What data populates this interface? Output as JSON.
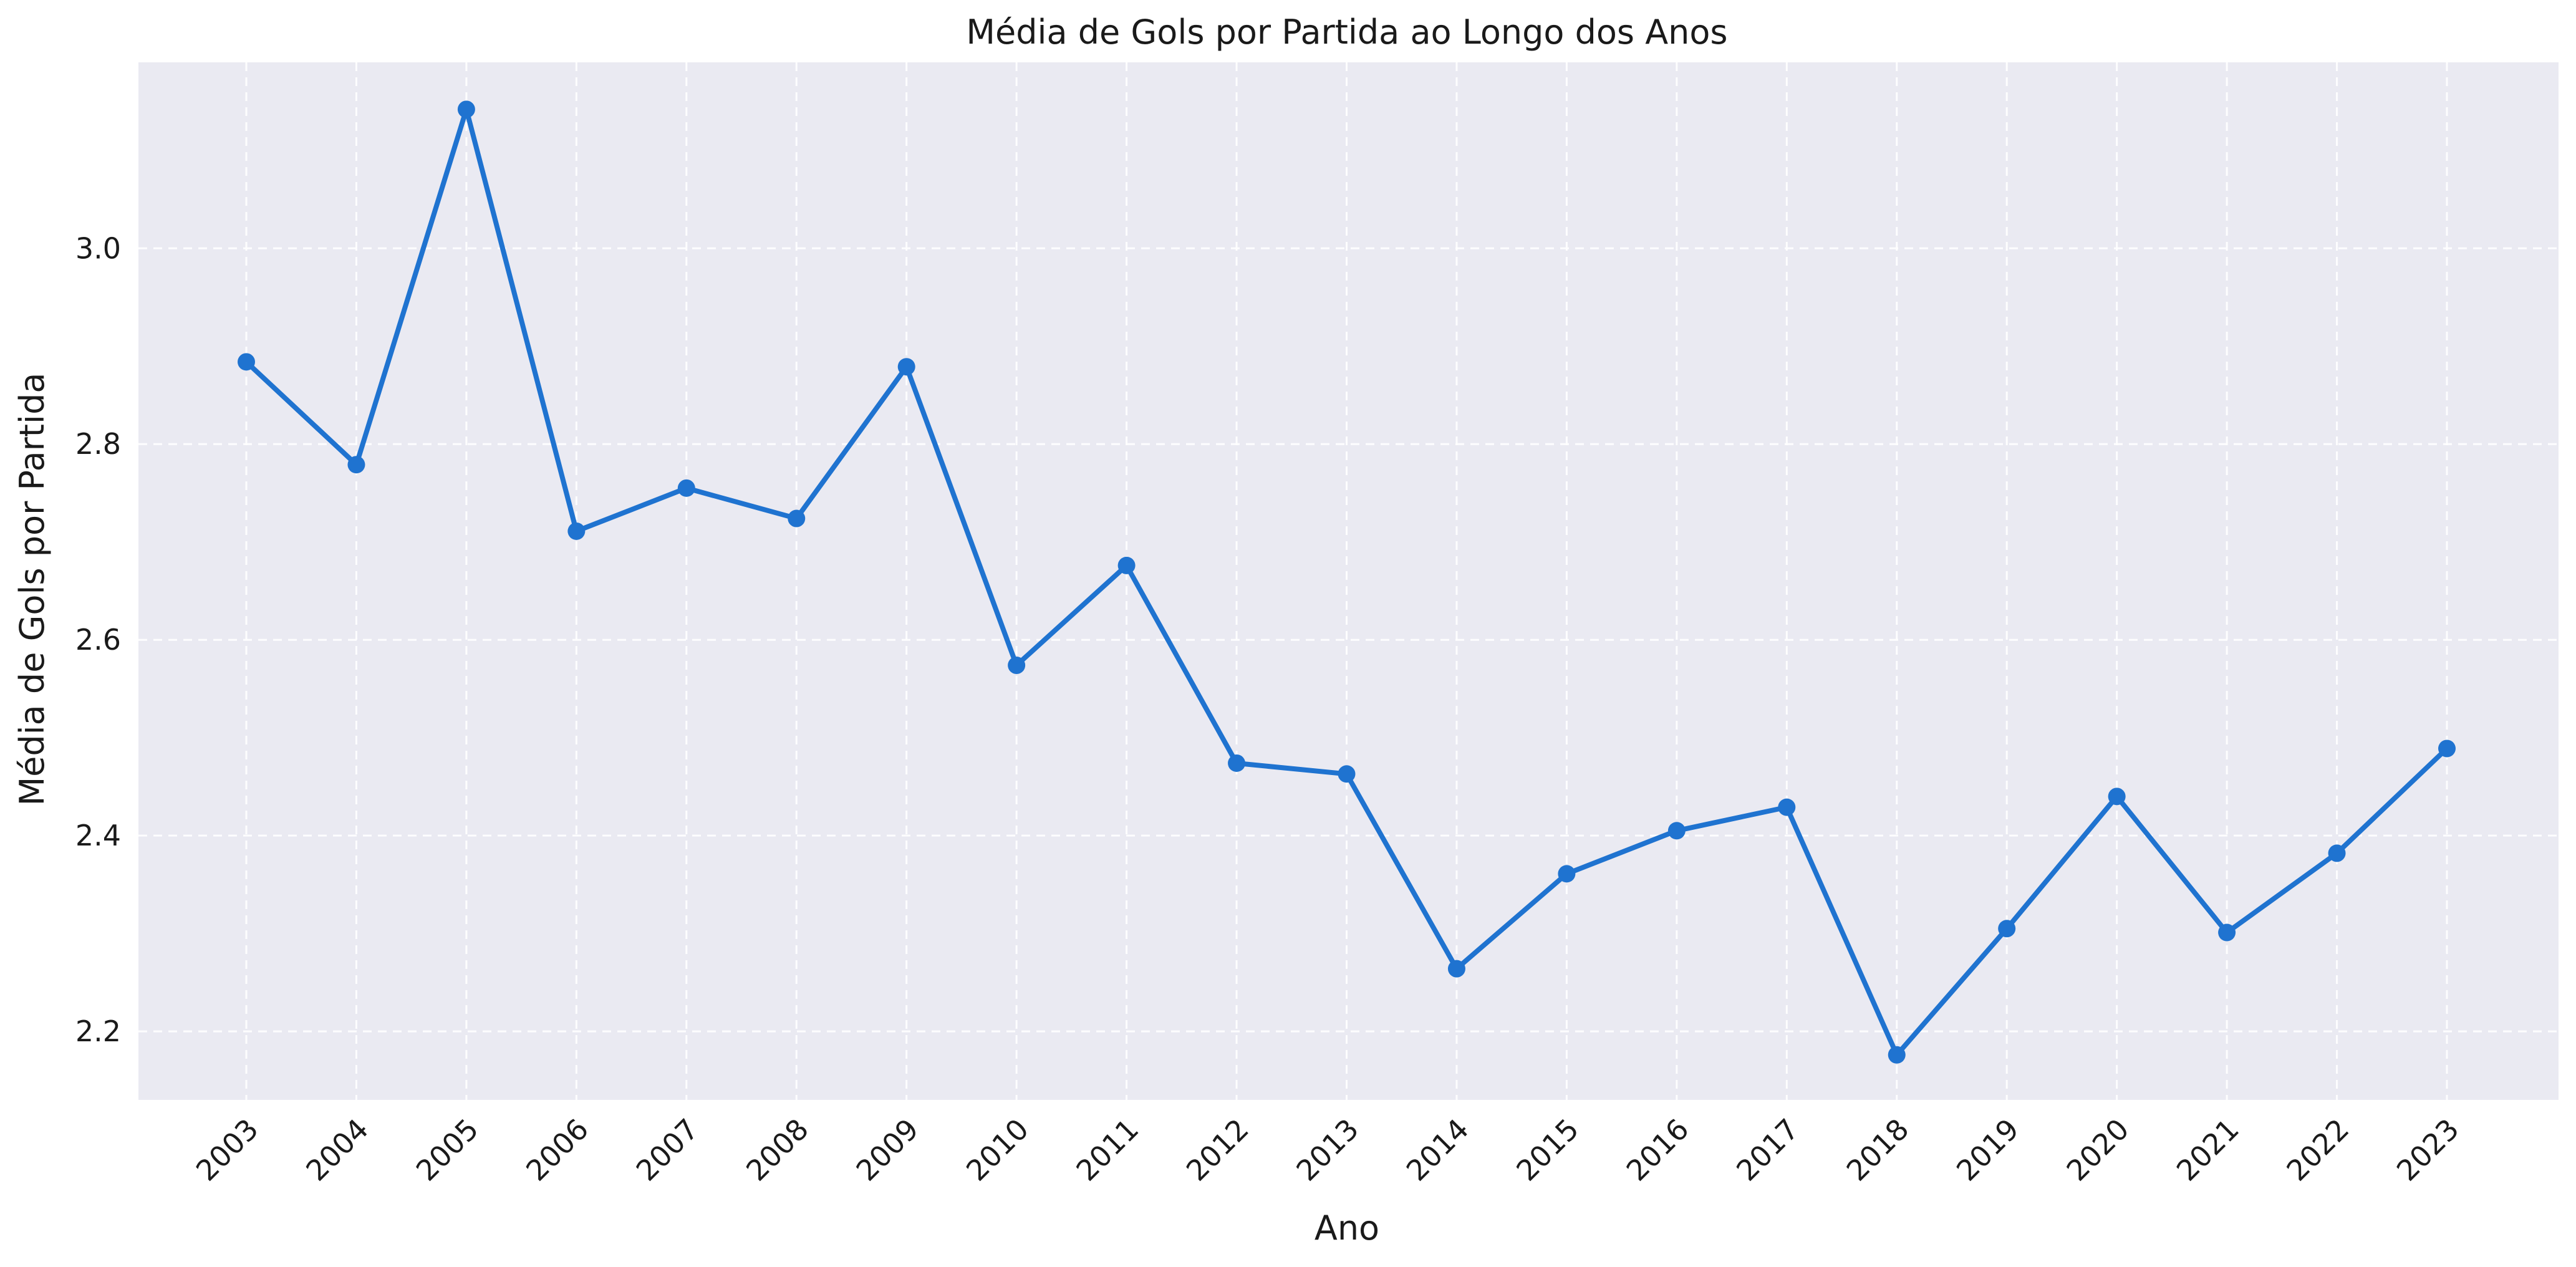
{
  "chart_data": {
    "type": "line",
    "title": "Média de Gols por Partida ao Longo dos Anos",
    "xlabel": "Ano",
    "ylabel": "Média de Gols por Partida",
    "x": [
      "2003",
      "2004",
      "2005",
      "2006",
      "2007",
      "2008",
      "2009",
      "2010",
      "2011",
      "2012",
      "2013",
      "2014",
      "2015",
      "2016",
      "2017",
      "2018",
      "2019",
      "2020",
      "2021",
      "2022",
      "2023"
    ],
    "series": [
      {
        "values": [
          2.884,
          2.779,
          3.142,
          2.711,
          2.755,
          2.724,
          2.879,
          2.574,
          2.676,
          2.474,
          2.463,
          2.264,
          2.361,
          2.405,
          2.429,
          2.176,
          2.305,
          2.44,
          2.301,
          2.382,
          2.489
        ]
      }
    ],
    "ylim": [
      2.13,
      3.19
    ],
    "yticks": [
      2.2,
      2.4,
      2.6,
      2.8,
      3.0
    ],
    "ytick_labels": [
      "2.2",
      "2.4",
      "2.6",
      "2.8",
      "3.0"
    ],
    "grid": true,
    "colors": {
      "line": "#1f73d0",
      "plot_background": "#eaeaf2",
      "grid": "#ffffff"
    }
  }
}
